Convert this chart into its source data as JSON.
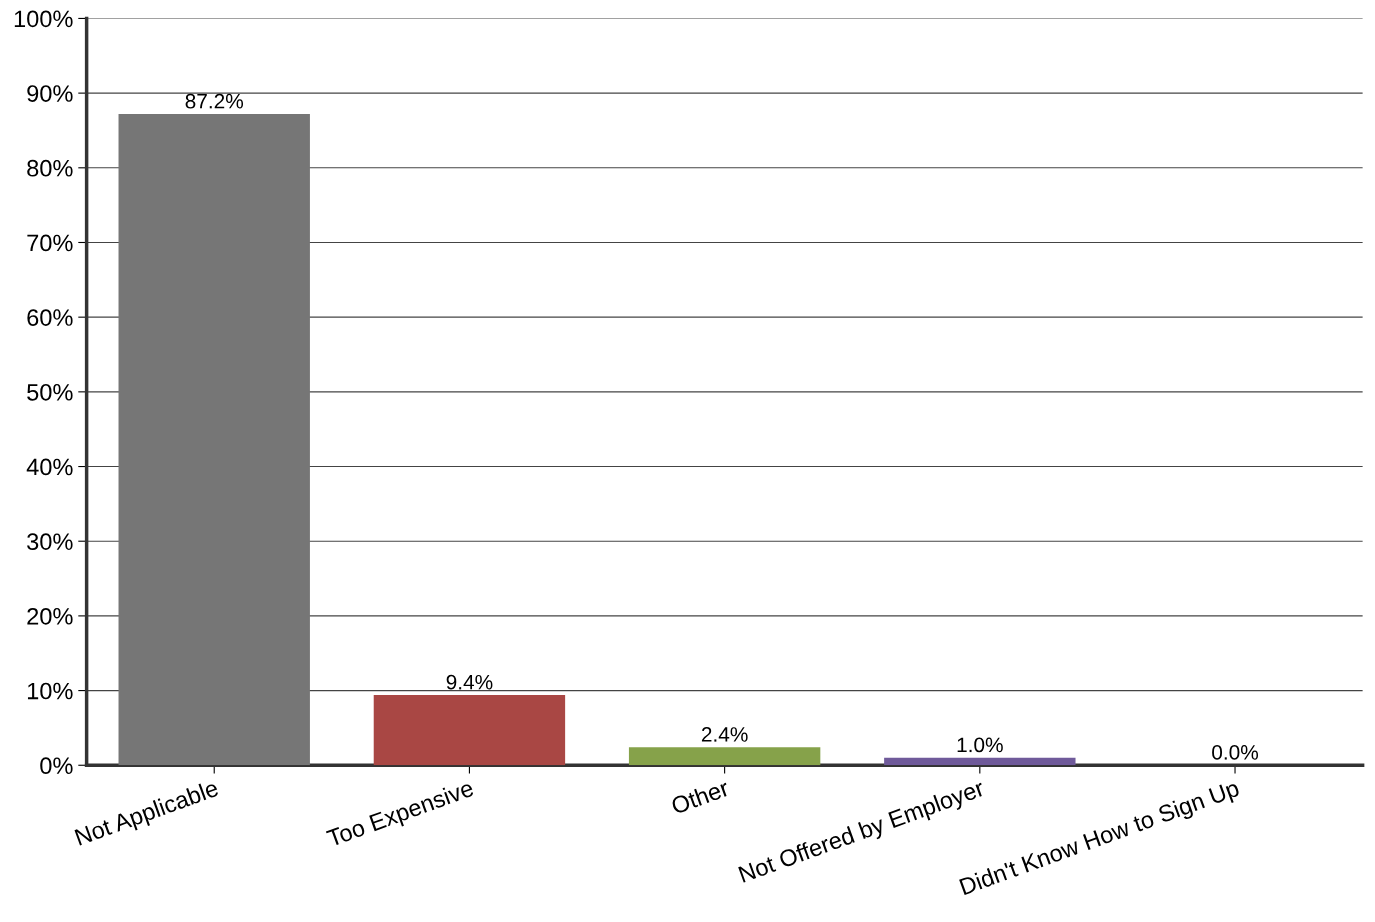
{
  "chart_data": {
    "type": "bar",
    "categories": [
      "Not Applicable",
      "Too Expensive",
      "Other",
      "Not Offered by Employer",
      "Didn't Know How to Sign Up"
    ],
    "values": [
      87.2,
      9.4,
      2.4,
      1.0,
      0.0
    ],
    "colors": [
      "#767676",
      "#a94744",
      "#86a24a",
      "#6f5a9a",
      "#4f81bd"
    ],
    "value_labels": [
      "87.2%",
      "9.4%",
      "2.4%",
      "1.0%",
      "0.0%"
    ],
    "ylim": [
      0,
      100
    ],
    "yticks": [
      {
        "value": 0,
        "label": "0%"
      },
      {
        "value": 10,
        "label": "10%"
      },
      {
        "value": 20,
        "label": "20%"
      },
      {
        "value": 30,
        "label": "30%"
      },
      {
        "value": 40,
        "label": "40%"
      },
      {
        "value": 50,
        "label": "50%"
      },
      {
        "value": 60,
        "label": "60%"
      },
      {
        "value": 70,
        "label": "70%"
      },
      {
        "value": 80,
        "label": "80%"
      },
      {
        "value": 90,
        "label": "90%"
      },
      {
        "value": 100,
        "label": "100%"
      }
    ],
    "grid": "y",
    "legend": false
  }
}
